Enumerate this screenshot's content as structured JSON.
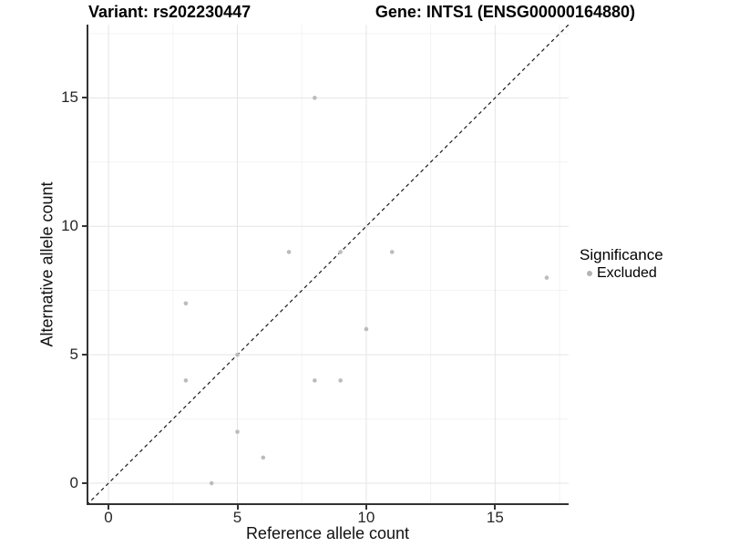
{
  "chart_data": {
    "type": "scatter",
    "title_left": "Variant: rs202230447",
    "title_right": "Gene: INTS1 (ENSG00000164880)",
    "xlabel": "Reference allele count",
    "ylabel": "Alternative allele count",
    "xlim": [
      -0.85,
      17.85
    ],
    "ylim": [
      -0.85,
      17.85
    ],
    "x_ticks": {
      "values": [
        0,
        5,
        10,
        15
      ],
      "labels": [
        "0",
        "5",
        "10",
        "15"
      ]
    },
    "y_ticks": {
      "values": [
        0,
        5,
        10,
        15
      ],
      "labels": [
        "0",
        "5",
        "10",
        "15"
      ]
    },
    "x_minor_ticks": [
      2.5,
      7.5,
      12.5,
      17.5
    ],
    "y_minor_ticks": [
      2.5,
      7.5,
      12.5,
      17.5
    ],
    "grid": "major+minor",
    "identity_line": {
      "style": "dashed",
      "from": -0.85,
      "to": 17.85,
      "color": "#1a1a1a"
    },
    "series": [
      {
        "name": "Excluded",
        "marker_color": "#bcbcbc",
        "points": [
          [
            3,
            4
          ],
          [
            3,
            7
          ],
          [
            4,
            0
          ],
          [
            5,
            2
          ],
          [
            5,
            5
          ],
          [
            6,
            1
          ],
          [
            7,
            9
          ],
          [
            8,
            4
          ],
          [
            8,
            15
          ],
          [
            9,
            4
          ],
          [
            9,
            9
          ],
          [
            10,
            6
          ],
          [
            11,
            9
          ],
          [
            17,
            8
          ]
        ]
      }
    ],
    "legend": {
      "title": "Significance",
      "position": "right",
      "entries": [
        {
          "label": "Excluded",
          "color": "#b3b3b3"
        }
      ]
    }
  },
  "colors": {
    "background": "#ffffff",
    "grid_major": "#e5e5e5",
    "grid_minor": "#f3f3f3",
    "axis_line": "#333333",
    "tick_text": "#262626",
    "point": "#bcbcbc"
  }
}
